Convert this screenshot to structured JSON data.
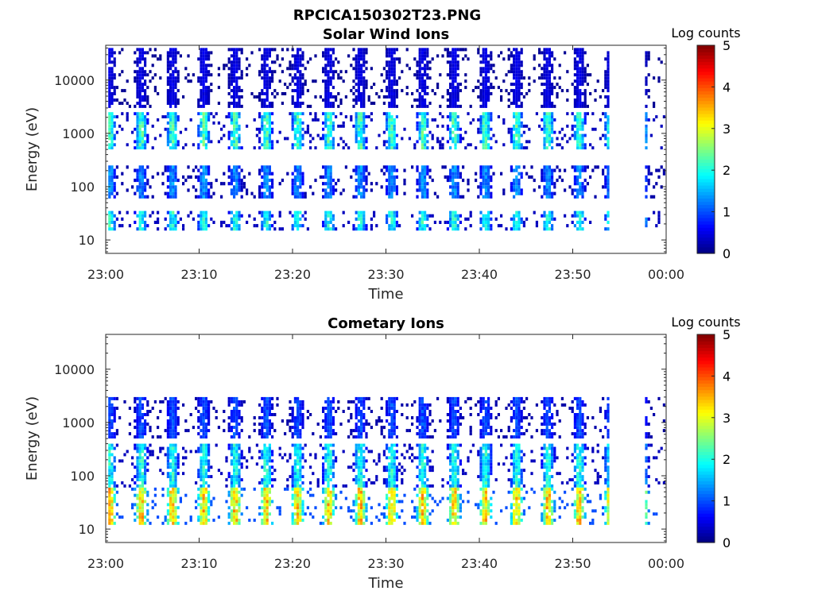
{
  "figure_title": "RPCICA150302T23.PNG",
  "colors": {
    "colormap": "jet",
    "axes": "#262626",
    "background": "#ffffff"
  },
  "chart_data": [
    {
      "type": "heatmap",
      "title": "Solar Wind Ions",
      "xlabel": "Time",
      "ylabel": "Energy (eV)",
      "x_tick_labels": [
        "23:00",
        "23:10",
        "23:20",
        "23:30",
        "23:40",
        "23:50",
        "00:00"
      ],
      "x_ticks_min": [
        0,
        10,
        20,
        30,
        40,
        50,
        60
      ],
      "xlim_min": [
        0,
        60
      ],
      "y_tick_labels": [
        "10",
        "100",
        "1000",
        "10000"
      ],
      "y_ticks": [
        10,
        100,
        1000,
        10000
      ],
      "ylim": [
        5.6,
        45000
      ],
      "y_scale": "log",
      "grid": false,
      "colorbar": {
        "label": "Log counts",
        "range": [
          0,
          5
        ],
        "tick_labels": [
          "0",
          "1",
          "2",
          "3",
          "4",
          "5"
        ]
      },
      "data_coverage_min": [
        0.2,
        54.0,
        57.8,
        60.0
      ],
      "bands": [
        {
          "energy_eV": [
            15,
            35
          ],
          "log_counts": [
            0.3,
            2.4
          ]
        },
        {
          "energy_eV": [
            60,
            250
          ],
          "log_counts": [
            0.2,
            1.6
          ]
        },
        {
          "energy_eV": [
            500,
            2500
          ],
          "log_counts": [
            0.3,
            2.6
          ]
        },
        {
          "energy_eV": [
            3000,
            40000
          ],
          "log_counts": [
            0.1,
            0.6
          ]
        }
      ]
    },
    {
      "type": "heatmap",
      "title": "Cometary Ions",
      "xlabel": "Time",
      "ylabel": "Energy (eV)",
      "x_tick_labels": [
        "23:00",
        "23:10",
        "23:20",
        "23:30",
        "23:40",
        "23:50",
        "00:00"
      ],
      "x_ticks_min": [
        0,
        10,
        20,
        30,
        40,
        50,
        60
      ],
      "xlim_min": [
        0,
        60
      ],
      "y_tick_labels": [
        "10",
        "100",
        "1000",
        "10000"
      ],
      "y_ticks": [
        10,
        100,
        1000,
        10000
      ],
      "ylim": [
        5.6,
        45000
      ],
      "y_scale": "log",
      "grid": false,
      "colorbar": {
        "label": "Log counts",
        "range": [
          0,
          5
        ],
        "tick_labels": [
          "0",
          "1",
          "2",
          "3",
          "4",
          "5"
        ]
      },
      "data_coverage_min": [
        0.2,
        54.0,
        57.8,
        60.0
      ],
      "bands": [
        {
          "energy_eV": [
            12,
            60
          ],
          "log_counts": [
            1.0,
            3.9
          ]
        },
        {
          "energy_eV": [
            60,
            400
          ],
          "log_counts": [
            0.3,
            2.4
          ]
        },
        {
          "energy_eV": [
            500,
            3000
          ],
          "log_counts": [
            0.2,
            1.2
          ]
        }
      ]
    }
  ]
}
